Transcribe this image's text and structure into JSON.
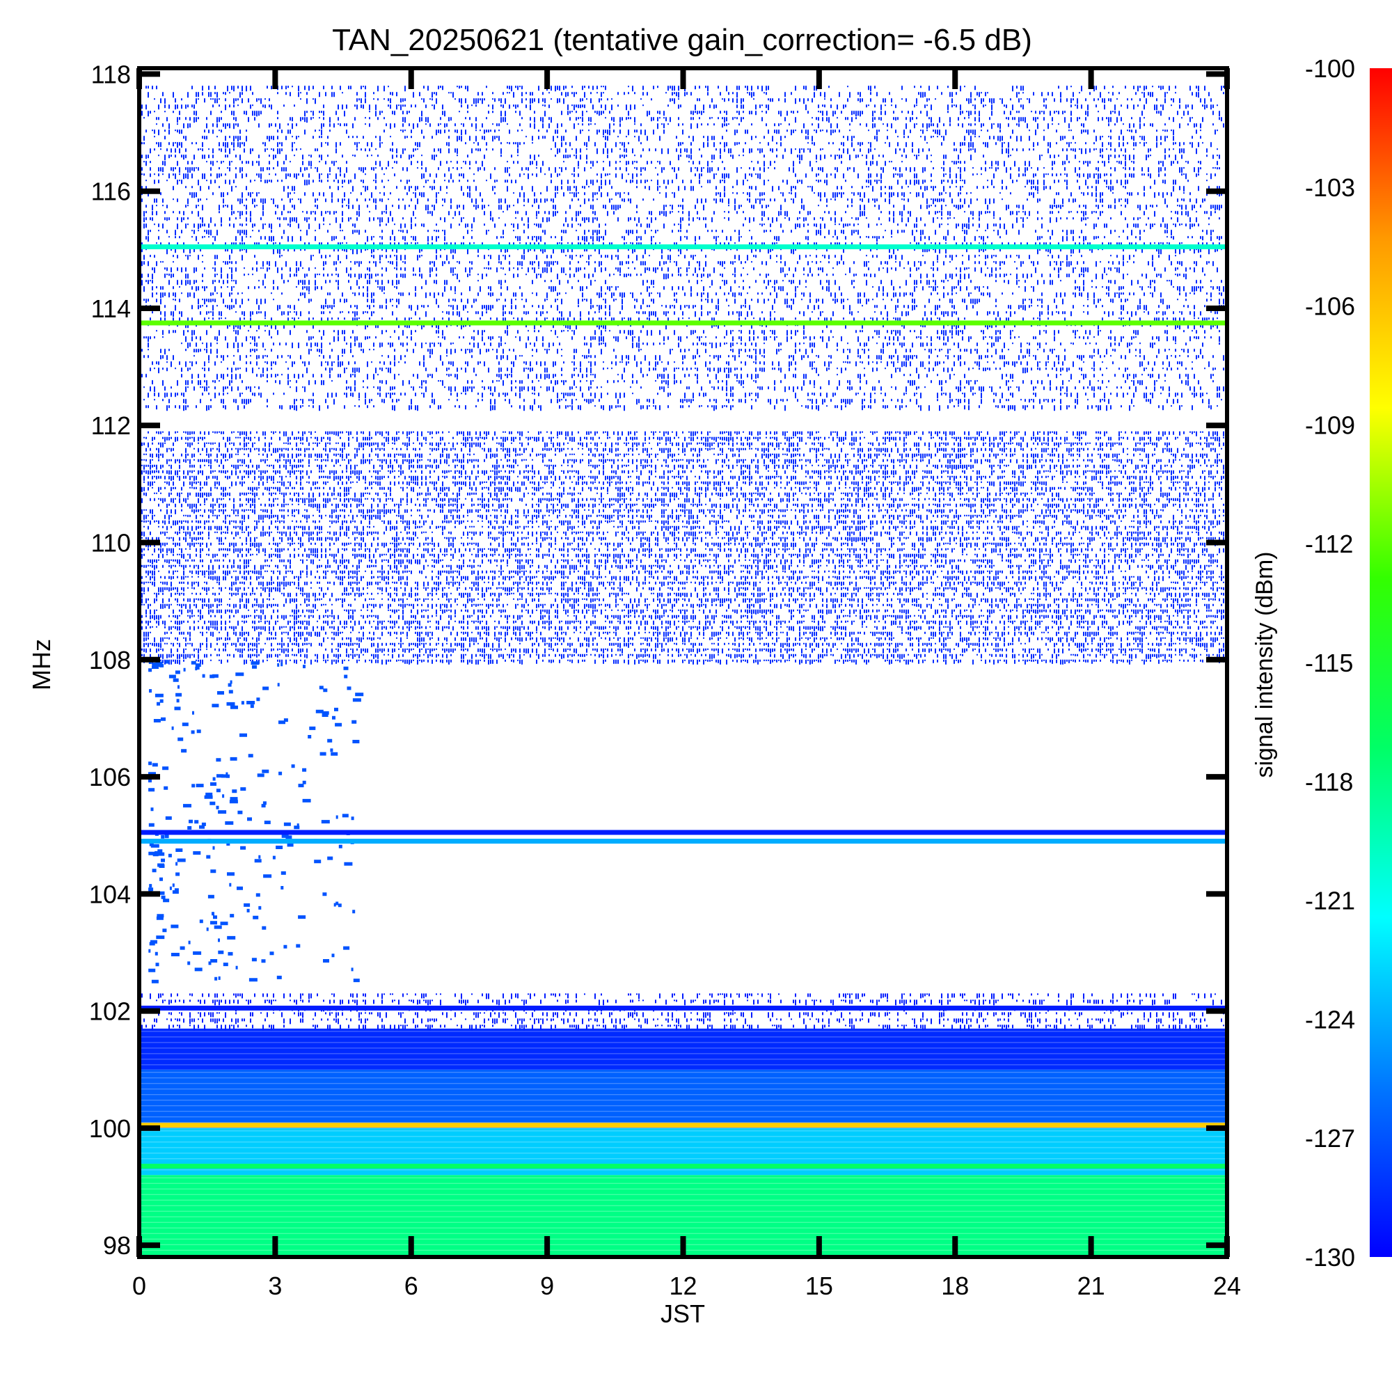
{
  "chart_data": {
    "type": "heatmap",
    "title": "TAN_20250621 (tentative gain_correction= -6.5 dB)",
    "xlabel": "JST",
    "ylabel": "MHz",
    "colorbar_label": "signal intensity (dBm)",
    "xlim": [
      0,
      24
    ],
    "ylim": [
      97.8,
      118.1
    ],
    "x_ticks": [
      0,
      3,
      6,
      9,
      12,
      15,
      18,
      21,
      24
    ],
    "x_tick_labels": [
      "0",
      "3",
      "6",
      "9",
      "12",
      "15",
      "18",
      "21",
      "24"
    ],
    "y_ticks": [
      98,
      100,
      102,
      104,
      106,
      108,
      110,
      112,
      114,
      116,
      118
    ],
    "y_tick_labels": [
      "98",
      "100",
      "102",
      "104",
      "106",
      "108",
      "110",
      "112",
      "114",
      "116",
      "118"
    ],
    "color_range": [
      -130,
      -100
    ],
    "colorbar_ticks": [
      -100,
      -103,
      -106,
      -109,
      -112,
      -115,
      -118,
      -121,
      -124,
      -127,
      -130
    ],
    "colorbar_tick_labels": [
      "-100",
      "-103",
      "-106",
      "-109",
      "-112",
      "-115",
      "-118",
      "-121",
      "-124",
      "-127",
      "-130"
    ],
    "colormap": [
      "#0000ff",
      "#0077ff",
      "#00ffff",
      "#00ff66",
      "#33ff00",
      "#ffff00",
      "#ff9900",
      "#ff0000"
    ],
    "grid": false,
    "bands": [
      {
        "freq_from": 97.8,
        "freq_to": 99.2,
        "level_dbm": -118,
        "pattern": "continuous"
      },
      {
        "freq_from": 99.2,
        "freq_to": 100.0,
        "level_dbm": -123,
        "pattern": "continuous"
      },
      {
        "freq_from": 100.0,
        "freq_to": 101.0,
        "level_dbm": -126.5,
        "pattern": "continuous"
      },
      {
        "freq_from": 101.0,
        "freq_to": 101.7,
        "level_dbm": -128.5,
        "pattern": "continuous"
      },
      {
        "freq_from": 101.7,
        "freq_to": 102.3,
        "level_dbm": -129,
        "pattern": "sparse",
        "density": 0.35
      },
      {
        "freq_from": 108.0,
        "freq_to": 111.9,
        "level_dbm": -128.5,
        "pattern": "dense-speckle",
        "density": 0.55
      },
      {
        "freq_from": 112.3,
        "freq_to": 117.8,
        "level_dbm": -128.5,
        "pattern": "speckle",
        "density": 0.3
      }
    ],
    "lines": [
      {
        "freq": 100.05,
        "level_dbm": -106.5
      },
      {
        "freq": 99.35,
        "level_dbm": -117
      },
      {
        "freq": 102.05,
        "level_dbm": -129
      },
      {
        "freq": 105.05,
        "level_dbm": -129
      },
      {
        "freq": 104.9,
        "level_dbm": -124
      },
      {
        "freq": 113.75,
        "level_dbm": -112
      },
      {
        "freq": 115.05,
        "level_dbm": -120
      }
    ],
    "sporadic_region": {
      "time_from": 0.2,
      "time_to": 4.8,
      "freq_from": 102.5,
      "freq_to": 108.0,
      "level_dbm": -127
    }
  }
}
